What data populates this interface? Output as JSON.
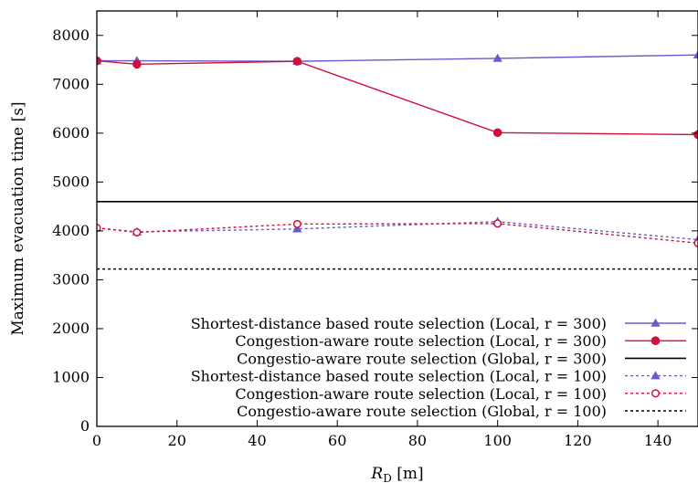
{
  "chart_data": {
    "type": "line",
    "xlabel": "R_D [m]",
    "xlabel_main": "R",
    "xlabel_sub": "D",
    "xlabel_unit": " [m]",
    "ylabel": "Maximum evacuation time [s]",
    "xlim": [
      0,
      150
    ],
    "ylim": [
      0,
      8500
    ],
    "xticks": [
      0,
      20,
      40,
      60,
      80,
      100,
      120,
      140
    ],
    "yticks": [
      0,
      1000,
      2000,
      3000,
      4000,
      5000,
      6000,
      7000,
      8000
    ],
    "grid": false,
    "legend_position": "bottom-right",
    "series": [
      {
        "name": "Shortest-distance based route selection (Local, r = 300)",
        "color": "#6a5acd",
        "dash": "solid",
        "marker": "triangle-filled",
        "x": [
          0,
          10,
          50,
          100,
          150
        ],
        "y": [
          7480,
          7480,
          7470,
          7530,
          7600
        ]
      },
      {
        "name": "Congestion-aware route selection (Local, r = 300)",
        "color": "#d0103a",
        "dash": "solid",
        "marker": "circle-filled",
        "x": [
          0,
          10,
          50,
          100,
          150
        ],
        "y": [
          7480,
          7410,
          7470,
          6010,
          5970
        ]
      },
      {
        "name": "Congestio-aware route selection (Global, r = 300)",
        "color": "#000000",
        "dash": "solid",
        "marker": "none",
        "x": [
          0,
          150
        ],
        "y": [
          4600,
          4600
        ]
      },
      {
        "name": "Shortest-distance based route selection (Local, r = 100)",
        "color": "#6a5acd",
        "dash": "dotted",
        "marker": "triangle-filled",
        "x": [
          0,
          10,
          50,
          100,
          150
        ],
        "y": [
          4060,
          3980,
          4040,
          4190,
          3820
        ]
      },
      {
        "name": "Congestion-aware route selection (Local, r = 100)",
        "color": "#d0103a",
        "dash": "dotted",
        "marker": "circle-open",
        "x": [
          0,
          10,
          50,
          100,
          150
        ],
        "y": [
          4060,
          3970,
          4140,
          4150,
          3750
        ]
      },
      {
        "name": "Congestio-aware route selection (Global, r = 100)",
        "color": "#000000",
        "dash": "dotted",
        "marker": "none",
        "x": [
          0,
          150
        ],
        "y": [
          3220,
          3220
        ]
      }
    ]
  }
}
